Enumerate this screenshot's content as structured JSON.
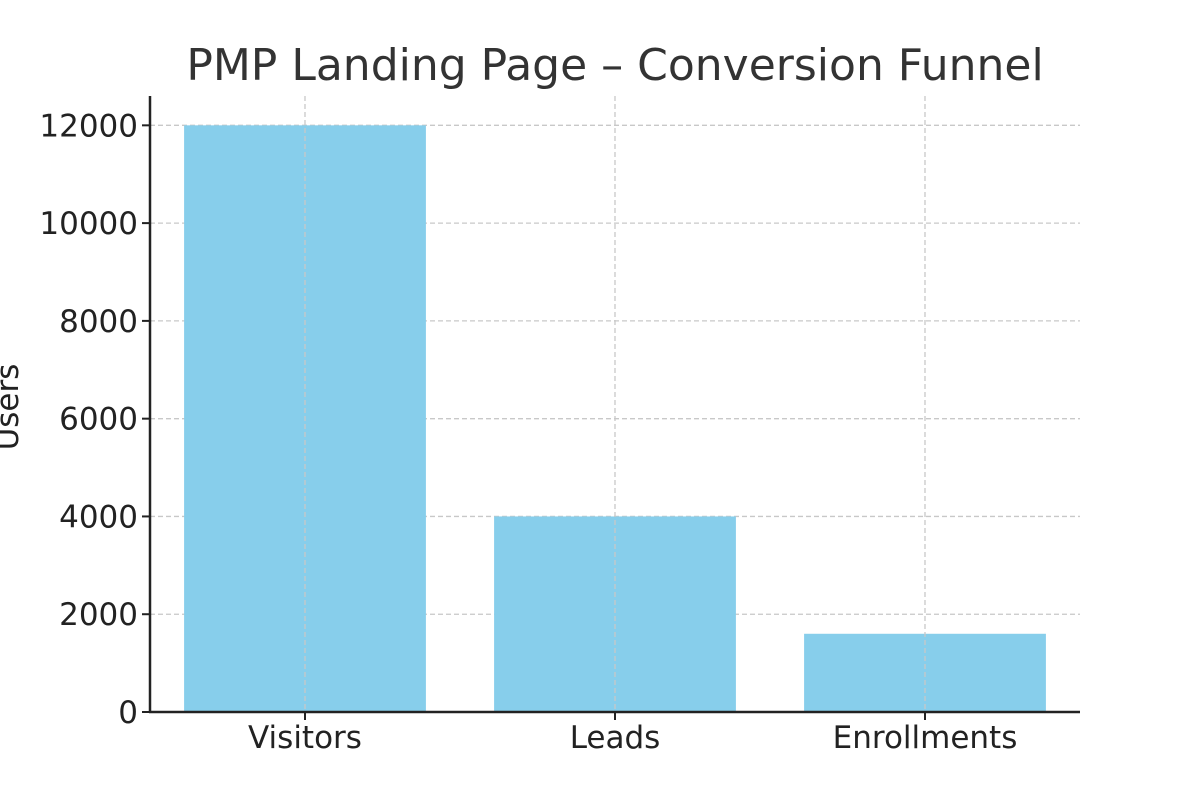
{
  "chart_data": {
    "type": "bar",
    "title": "PMP Landing Page – Conversion Funnel",
    "xlabel": "",
    "ylabel": "Users",
    "categories": [
      "Visitors",
      "Leads",
      "Enrollments"
    ],
    "values": [
      12000,
      4000,
      1600
    ],
    "ylim": [
      0,
      12600
    ],
    "yticks": [
      0,
      2000,
      4000,
      6000,
      8000,
      10000,
      12000
    ],
    "grid": true,
    "bar_color": "#87CEEB",
    "grid_color": "#c8c8c8",
    "axis_color": "#222222"
  }
}
